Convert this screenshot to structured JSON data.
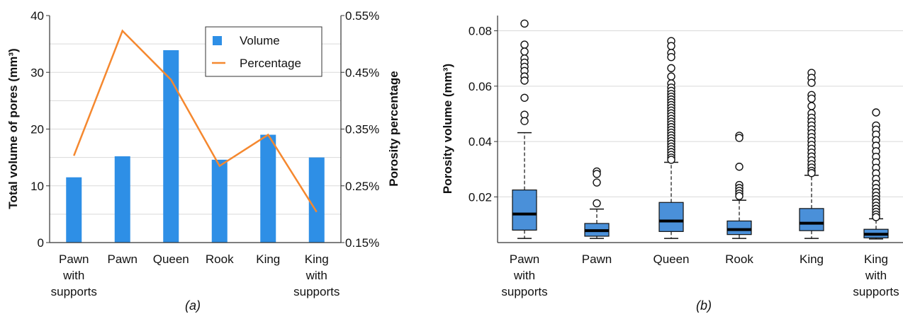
{
  "chart_data": [
    {
      "id": "a",
      "type": "bar+line",
      "caption": "(a)",
      "categories": [
        "Pawn with supports",
        "Pawn",
        "Queen",
        "Rook",
        "King",
        "King with supports"
      ],
      "ylabel": "Total volume of pores (mm³)",
      "y2label": "Porosity percentage",
      "ylim": [
        0,
        40
      ],
      "yticks": [
        "0",
        "10",
        "20",
        "30",
        "40"
      ],
      "y2lim": [
        0.15,
        0.55
      ],
      "y2ticks": [
        "0.15%",
        "0.25%",
        "0.35%",
        "0.45%",
        "0.55%"
      ],
      "grid": true,
      "legend_position": "top-right",
      "series": [
        {
          "name": "Volume",
          "kind": "bar",
          "color": "#2e8fe6",
          "values": [
            11.5,
            15.2,
            33.9,
            14.6,
            19.0,
            15.0
          ]
        },
        {
          "name": "Percentage",
          "kind": "line",
          "axis": "right",
          "color": "#f5882f",
          "values": [
            0.303,
            0.523,
            0.437,
            0.285,
            0.34,
            0.204
          ]
        }
      ]
    },
    {
      "id": "b",
      "type": "box",
      "caption": "(b)",
      "categories": [
        "Pawn with supports",
        "Pawn",
        "Queen",
        "Rook",
        "King",
        "King with supports"
      ],
      "ylabel": "Porosity volume (mm³)",
      "ylim": [
        0.0035,
        0.0855
      ],
      "yticks": [
        "0.02",
        "0.04",
        "0.06",
        "0.08"
      ],
      "grid": true,
      "box_color": "#4a90d9",
      "boxes": [
        {
          "whisker_low": 0.005,
          "q1": 0.008,
          "median": 0.0138,
          "q3": 0.0225,
          "whisker_high": 0.0432,
          "outliers": [
            0.0826,
            0.075,
            0.0725,
            0.07,
            0.0685,
            0.067,
            0.0655,
            0.0635,
            0.062,
            0.0558,
            0.0497,
            0.0474
          ]
        },
        {
          "whisker_low": 0.005,
          "q1": 0.0058,
          "median": 0.0078,
          "q3": 0.0104,
          "whisker_high": 0.0156,
          "outliers": [
            0.0292,
            0.0283,
            0.0252,
            0.0177
          ]
        },
        {
          "whisker_low": 0.005,
          "q1": 0.0075,
          "median": 0.0113,
          "q3": 0.018,
          "whisker_high": 0.0325,
          "outliers": [
            0.0763,
            0.0745,
            0.072,
            0.0705,
            0.0665,
            0.0635,
            0.061,
            0.0595,
            0.0583,
            0.0572,
            0.0562,
            0.0552,
            0.0542,
            0.0532,
            0.0522,
            0.0512,
            0.0502,
            0.0492,
            0.0482,
            0.0472,
            0.0462,
            0.0452,
            0.0442,
            0.0432,
            0.0422,
            0.0412,
            0.0402,
            0.0392,
            0.0382,
            0.0372,
            0.0362,
            0.0352,
            0.0342,
            0.0334
          ]
        },
        {
          "whisker_low": 0.005,
          "q1": 0.0064,
          "median": 0.0082,
          "q3": 0.0113,
          "whisker_high": 0.0188,
          "outliers": [
            0.0421,
            0.0413,
            0.0309,
            0.0243,
            0.0232,
            0.0222,
            0.0212,
            0.0203
          ]
        },
        {
          "whisker_low": 0.005,
          "q1": 0.0078,
          "median": 0.0105,
          "q3": 0.0158,
          "whisker_high": 0.0278,
          "outliers": [
            0.0648,
            0.063,
            0.0612,
            0.0568,
            0.0555,
            0.0528,
            0.0502,
            0.0486,
            0.0472,
            0.0458,
            0.0444,
            0.043,
            0.0416,
            0.0402,
            0.0388,
            0.0374,
            0.036,
            0.0346,
            0.0332,
            0.0318,
            0.0306,
            0.0294,
            0.0286
          ]
        },
        {
          "whisker_low": 0.0048,
          "q1": 0.0052,
          "median": 0.0065,
          "q3": 0.0083,
          "whisker_high": 0.0121,
          "outliers": [
            0.0505,
            0.0458,
            0.0443,
            0.0425,
            0.0405,
            0.0385,
            0.0365,
            0.0345,
            0.0325,
            0.0305,
            0.0285,
            0.0265,
            0.0247,
            0.0232,
            0.0217,
            0.0204,
            0.0192,
            0.018,
            0.0168,
            0.0157,
            0.0146,
            0.0136,
            0.0127
          ]
        }
      ]
    }
  ]
}
